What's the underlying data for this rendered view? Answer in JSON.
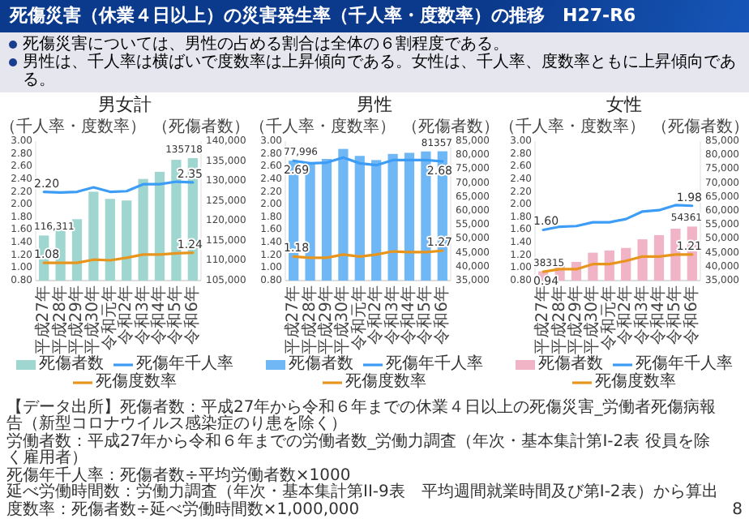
{
  "chart_data": [
    {
      "type": "other",
      "title": "死傷災害（休業４日以上）の災害発生率（千人率・度数率）の推移　H27-R6",
      "annotations": [
        "死傷災害については、男性の占める割合は全体の６割程度である。",
        "男性は、千人率は横ばいで度数率は上昇傾向である。女性は、千人率、度数率ともに上昇傾向である。"
      ]
    },
    {
      "type": "bar",
      "title": "男女計",
      "ylabel": "（千人率・度数率）",
      "y2label": "（死傷者数）",
      "legend": "bottom",
      "categories": [
        "平成27年",
        "平成28年",
        "平成29年",
        "平成30年",
        "令和元年",
        "令和2年",
        "令和3年",
        "令和4年",
        "令和5年",
        "令和6年"
      ],
      "ylim": [
        0.8,
        3.0
      ],
      "yticks": [
        {
          "value": 0.8,
          "label": "0.80"
        },
        {
          "value": 1.0,
          "label": "1.00"
        },
        {
          "value": 1.2,
          "label": "1.20"
        },
        {
          "value": 1.4,
          "label": "1.40"
        },
        {
          "value": 1.6,
          "label": "1.60"
        },
        {
          "value": 1.8,
          "label": "1.80"
        },
        {
          "value": 2.0,
          "label": "2.00"
        },
        {
          "value": 2.2,
          "label": "2.20"
        },
        {
          "value": 2.4,
          "label": "2.40"
        },
        {
          "value": 2.6,
          "label": "2.60"
        },
        {
          "value": 2.8,
          "label": "2.80"
        },
        {
          "value": 3.0,
          "label": "3.00"
        }
      ],
      "y2lim": [
        105000,
        140000
      ],
      "y2ticks": [
        {
          "value": 105000,
          "label": "105,000"
        },
        {
          "value": 110000,
          "label": "110,000"
        },
        {
          "value": 115000,
          "label": "115,000"
        },
        {
          "value": 120000,
          "label": "120,000"
        },
        {
          "value": 125000,
          "label": "125,000"
        },
        {
          "value": 130000,
          "label": "130,000"
        },
        {
          "value": 135000,
          "label": "135,000"
        },
        {
          "value": 140000,
          "label": "140,000"
        }
      ],
      "series": [
        {
          "name": "死傷者数",
          "type": "bar",
          "axis": "y2",
          "color": "#9fd6cf",
          "values": [
            116311,
            117900,
            120400,
            127300,
            125500,
            125100,
            130500,
            132300,
            135300,
            135718
          ],
          "value_labels": [
            "116,311",
            null,
            null,
            null,
            null,
            null,
            null,
            null,
            null,
            "135718"
          ]
        },
        {
          "name": "死傷年千人率",
          "type": "line",
          "color": "#3d9cf5",
          "values": [
            2.2,
            2.19,
            2.2,
            2.27,
            2.2,
            2.21,
            2.32,
            2.32,
            2.36,
            2.35
          ],
          "value_labels": [
            "2.20",
            null,
            null,
            null,
            null,
            null,
            null,
            null,
            null,
            "2.35"
          ]
        },
        {
          "name": "死傷度数率",
          "type": "line",
          "color": "#e8951e",
          "values": [
            1.08,
            1.08,
            1.08,
            1.13,
            1.12,
            1.16,
            1.21,
            1.21,
            1.23,
            1.24
          ],
          "value_labels": [
            "1.08",
            null,
            null,
            null,
            null,
            null,
            null,
            null,
            null,
            "1.24"
          ]
        }
      ]
    },
    {
      "type": "bar",
      "title": "男性",
      "ylabel": "（千人率・度数率）",
      "y2label": "（死傷者数）",
      "legend": "bottom",
      "categories": [
        "平成27年",
        "平成28年",
        "平成29年",
        "平成30年",
        "令和元年",
        "令和2年",
        "令和3年",
        "令和4年",
        "令和5年",
        "令和6年"
      ],
      "ylim": [
        0.8,
        3.0
      ],
      "yticks": [
        {
          "value": 0.8,
          "label": "0.80"
        },
        {
          "value": 1.0,
          "label": "1.00"
        },
        {
          "value": 1.2,
          "label": "1.20"
        },
        {
          "value": 1.4,
          "label": "1.40"
        },
        {
          "value": 1.6,
          "label": "1.60"
        },
        {
          "value": 1.8,
          "label": "1.80"
        },
        {
          "value": 2.0,
          "label": "2.00"
        },
        {
          "value": 2.2,
          "label": "2.20"
        },
        {
          "value": 2.4,
          "label": "2.40"
        },
        {
          "value": 2.6,
          "label": "2.60"
        },
        {
          "value": 2.8,
          "label": "2.80"
        },
        {
          "value": 3.0,
          "label": "3.00"
        }
      ],
      "y2lim": [
        35000,
        85000
      ],
      "y2ticks": [
        {
          "value": 35000,
          "label": "35,000"
        },
        {
          "value": 40000,
          "label": "40,000"
        },
        {
          "value": 45000,
          "label": "45,000"
        },
        {
          "value": 50000,
          "label": "50,000"
        },
        {
          "value": 55000,
          "label": "55,000"
        },
        {
          "value": 60000,
          "label": "60,000"
        },
        {
          "value": 65000,
          "label": "65,000"
        },
        {
          "value": 70000,
          "label": "70,000"
        },
        {
          "value": 75000,
          "label": "75,000"
        },
        {
          "value": 80000,
          "label": "80,000"
        },
        {
          "value": 85000,
          "label": "85,000"
        }
      ],
      "series": [
        {
          "name": "死傷者数",
          "type": "bar",
          "axis": "y2",
          "color": "#6fb8f5",
          "values": [
            77996,
            76800,
            78600,
            82200,
            79700,
            78200,
            80400,
            80800,
            81300,
            81357
          ],
          "value_labels": [
            "77,996",
            null,
            null,
            null,
            null,
            null,
            null,
            null,
            null,
            "81357"
          ]
        },
        {
          "name": "死傷年千人率",
          "type": "line",
          "color": "#3d9cf5",
          "values": [
            2.69,
            2.65,
            2.66,
            2.74,
            2.65,
            2.62,
            2.7,
            2.7,
            2.7,
            2.68
          ],
          "value_labels": [
            "2.69",
            null,
            null,
            null,
            null,
            null,
            null,
            null,
            null,
            "2.68"
          ]
        },
        {
          "name": "死傷度数率",
          "type": "line",
          "color": "#e8951e",
          "values": [
            1.18,
            1.16,
            1.16,
            1.21,
            1.18,
            1.21,
            1.26,
            1.25,
            1.25,
            1.27
          ],
          "value_labels": [
            "1.18",
            null,
            null,
            null,
            null,
            null,
            null,
            null,
            null,
            "1.27"
          ]
        }
      ]
    },
    {
      "type": "bar",
      "title": "女性",
      "ylabel": "（千人率・度数率）",
      "y2label": "（死傷者数）",
      "legend": "bottom",
      "categories": [
        "平成27年",
        "平成28年",
        "平成29年",
        "平成30年",
        "令和元年",
        "令和2年",
        "令和3年",
        "令和4年",
        "令和5年",
        "令和6年"
      ],
      "ylim": [
        0.8,
        3.0
      ],
      "yticks": [
        {
          "value": 0.8,
          "label": "0.80"
        },
        {
          "value": 1.0,
          "label": "1.00"
        },
        {
          "value": 1.2,
          "label": "1.20"
        },
        {
          "value": 1.4,
          "label": "1.40"
        },
        {
          "value": 1.6,
          "label": "1.60"
        },
        {
          "value": 1.8,
          "label": "1.80"
        },
        {
          "value": 2.0,
          "label": "2.00"
        },
        {
          "value": 2.2,
          "label": "2.20"
        },
        {
          "value": 2.4,
          "label": "2.40"
        },
        {
          "value": 2.6,
          "label": "2.60"
        },
        {
          "value": 2.8,
          "label": "2.80"
        },
        {
          "value": 3.0,
          "label": "3.00"
        }
      ],
      "y2lim": [
        35000,
        85000
      ],
      "y2ticks": [
        {
          "value": 35000,
          "label": "35,000"
        },
        {
          "value": 40000,
          "label": "40,000"
        },
        {
          "value": 45000,
          "label": "45,000"
        },
        {
          "value": 50000,
          "label": "50,000"
        },
        {
          "value": 55000,
          "label": "55,000"
        },
        {
          "value": 60000,
          "label": "60,000"
        },
        {
          "value": 65000,
          "label": "65,000"
        },
        {
          "value": 70000,
          "label": "70,000"
        },
        {
          "value": 75000,
          "label": "75,000"
        },
        {
          "value": 80000,
          "label": "80,000"
        },
        {
          "value": 85000,
          "label": "85,000"
        }
      ],
      "series": [
        {
          "name": "死傷者数",
          "type": "bar",
          "axis": "y2",
          "color": "#f1b3c6",
          "values": [
            38315,
            40400,
            41700,
            45000,
            45800,
            46700,
            49800,
            51300,
            53600,
            54361
          ],
          "value_labels": [
            "38315",
            null,
            null,
            null,
            null,
            null,
            null,
            null,
            null,
            "54361"
          ]
        },
        {
          "name": "死傷年千人率",
          "type": "line",
          "color": "#3d9cf5",
          "values": [
            1.6,
            1.65,
            1.66,
            1.72,
            1.72,
            1.77,
            1.89,
            1.91,
            1.99,
            1.98
          ],
          "value_labels": [
            "1.60",
            null,
            null,
            null,
            null,
            null,
            null,
            null,
            null,
            "1.98"
          ]
        },
        {
          "name": "死傷度数率",
          "type": "line",
          "color": "#e8951e",
          "values": [
            0.94,
            0.98,
            0.98,
            1.06,
            1.06,
            1.11,
            1.18,
            1.18,
            1.21,
            1.21
          ],
          "value_labels": [
            "0.94",
            null,
            null,
            null,
            null,
            null,
            null,
            null,
            null,
            "1.21"
          ]
        }
      ]
    },
    {
      "type": "other",
      "annotations": [
        "【データ出所】死傷者数：平成27年から令和６年までの休業４日以上の死傷災害_労働者死傷病報告（新型コロナウイルス感染症のり患を除く）",
        "労働者数：平成27年から令和６年までの労働者数_労働力調査（年次・基本集計第I-2表 役員を除く雇用者）",
        "死傷年千人率：死傷者数÷平均労働者数×1000",
        "延べ労働時間数：労働力調査（年次・基本集計第II-9表　平均週間就業時間及び第I-2表）から算出",
        "度数率：死傷者数÷延べ労働時間数×1,000,000",
        "8"
      ]
    }
  ]
}
